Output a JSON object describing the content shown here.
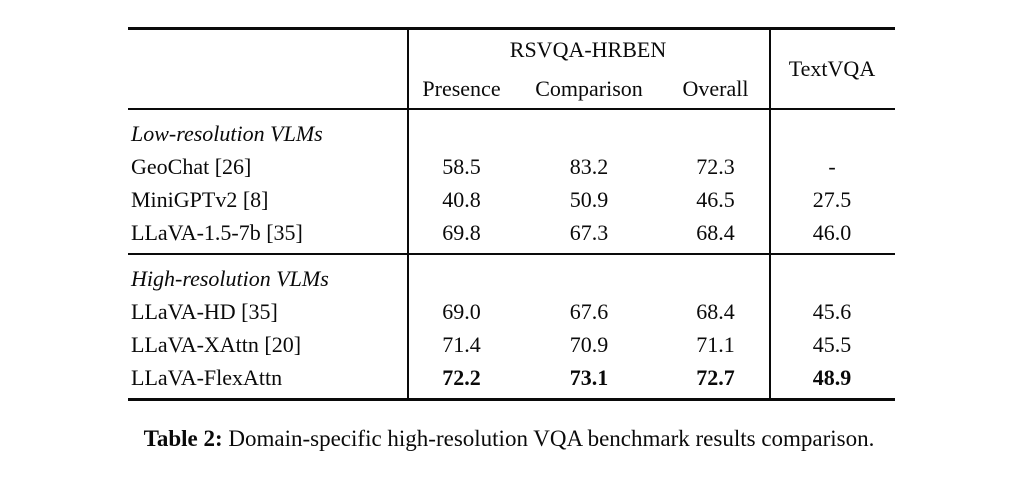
{
  "table": {
    "header": {
      "group": "RSVQA-HRBEN",
      "col1": "Presence",
      "col2": "Comparison",
      "col3": "Overall",
      "side": "TextVQA"
    },
    "sections": [
      {
        "title": "Low-resolution VLMs",
        "rows": [
          {
            "label": "GeoChat [26]",
            "presence": "58.5",
            "comparison": "83.2",
            "overall": "72.3",
            "textvqa": "-"
          },
          {
            "label": "MiniGPTv2 [8]",
            "presence": "40.8",
            "comparison": "50.9",
            "overall": "46.5",
            "textvqa": "27.5"
          },
          {
            "label": "LLaVA-1.5-7b [35]",
            "presence": "69.8",
            "comparison": "67.3",
            "overall": "68.4",
            "textvqa": "46.0"
          }
        ]
      },
      {
        "title": "High-resolution VLMs",
        "rows": [
          {
            "label": "LLaVA-HD [35]",
            "presence": "69.0",
            "comparison": "67.6",
            "overall": "68.4",
            "textvqa": "45.6"
          },
          {
            "label": "LLaVA-XAttn [20]",
            "presence": "71.4",
            "comparison": "70.9",
            "overall": "71.1",
            "textvqa": "45.5"
          },
          {
            "label": "LLaVA-FlexAttn",
            "presence": "72.2",
            "comparison": "73.1",
            "overall": "72.7",
            "textvqa": "48.9"
          }
        ]
      }
    ]
  },
  "caption": {
    "label": "Table 2:",
    "text": "Domain-specific high-resolution VQA benchmark results comparison."
  }
}
